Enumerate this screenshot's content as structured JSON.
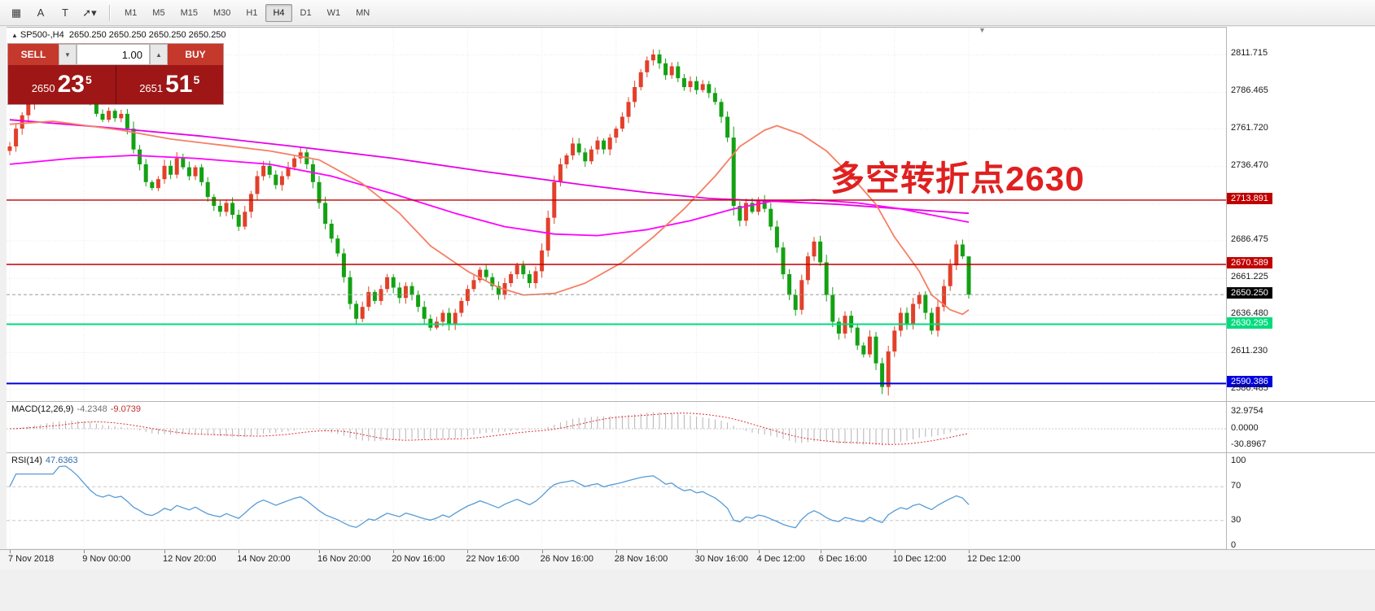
{
  "toolbar": {
    "tools": [
      {
        "id": "cursor-grid",
        "glyph": "▦"
      },
      {
        "id": "text-label-a",
        "glyph": "A"
      },
      {
        "id": "text-box-t",
        "glyph": "T"
      },
      {
        "id": "draw-objects-dropdown",
        "glyph": "➚▾"
      }
    ],
    "timeframes": [
      "M1",
      "M5",
      "M15",
      "M30",
      "H1",
      "H4",
      "D1",
      "W1",
      "MN"
    ],
    "active_timeframe": "H4"
  },
  "chart": {
    "symbol_header": {
      "name": "SP500-,H4",
      "ohlc": "2650.250 2650.250 2650.250 2650.250"
    },
    "icons": {
      "symbol_marker": "▲",
      "scroll_marker": "▼",
      "spinner_down": "▼",
      "spinner_up": "▲"
    },
    "trade_panel": {
      "sell": "SELL",
      "buy": "BUY",
      "volume": "1.00",
      "sell_price": {
        "base": "2650",
        "big": "23",
        "sup": "5"
      },
      "buy_price": {
        "base": "2651",
        "big": "51",
        "sup": "5"
      },
      "colors": {
        "button": "#c5382c",
        "panel": "#9e1616"
      }
    },
    "annotation": {
      "text": "多空转折点2630",
      "color": "#e02020"
    }
  },
  "macd": {
    "title": "MACD(12,26,9)",
    "value": "-4.2348",
    "signal_value": "-9.0739",
    "axis_labels": [
      "32.9754",
      "0.0000",
      "-30.8967"
    ]
  },
  "rsi": {
    "title": "RSI(14)",
    "value": "47.6363",
    "axis_labels": [
      "100",
      "70",
      "30",
      "0"
    ]
  },
  "chart_data": {
    "type": "candlestick",
    "symbol": "SP500-",
    "timeframe": "H4",
    "ylim": [
      2578,
      2830
    ],
    "grid_prices": [
      2811.715,
      2786.465,
      2761.72,
      2736.47,
      2711.22,
      2686.475,
      2661.225,
      2636.48,
      2611.23,
      2586.485
    ],
    "axis_labels": [
      {
        "text": "2811.715",
        "type": "grid"
      },
      {
        "text": "2786.465",
        "type": "grid"
      },
      {
        "text": "2761.720",
        "type": "grid"
      },
      {
        "text": "2736.470",
        "type": "grid"
      },
      {
        "text": "2713.891",
        "type": "line",
        "color": "#c00000"
      },
      {
        "text": "2686.475",
        "type": "grid"
      },
      {
        "text": "2670.589",
        "type": "line",
        "color": "#c00000"
      },
      {
        "text": "2661.225",
        "type": "grid"
      },
      {
        "text": "2650.250",
        "type": "price",
        "color": "#000000"
      },
      {
        "text": "2636.480",
        "type": "grid"
      },
      {
        "text": "2630.295",
        "type": "line",
        "color": "#00dc7d"
      },
      {
        "text": "2611.230",
        "type": "grid"
      },
      {
        "text": "2590.386",
        "type": "line",
        "color": "#0000e0"
      },
      {
        "text": "2586.485",
        "type": "grid"
      }
    ],
    "hlines": [
      {
        "price": 2713.891,
        "color": "#c00000",
        "width": 1.4
      },
      {
        "price": 2670.589,
        "color": "#c00000",
        "width": 1.4
      },
      {
        "price": 2630.295,
        "color": "#00dc7d",
        "width": 2
      },
      {
        "price": 2590.386,
        "color": "#0000e0",
        "width": 2
      }
    ],
    "current_price": 2650.25,
    "colors": {
      "up": "#e2402a",
      "down": "#13a113",
      "grid": "#e8e8e8"
    },
    "candles": {
      "first_open": 2747,
      "closes": [
        2750,
        2762,
        2771,
        2779,
        2788,
        2796,
        2804,
        2810,
        2806,
        2812,
        2808,
        2802,
        2793,
        2782,
        2772,
        2768,
        2774,
        2769,
        2772,
        2762,
        2748,
        2738,
        2726,
        2722,
        2728,
        2737,
        2731,
        2742,
        2736,
        2730,
        2736,
        2726,
        2716,
        2710,
        2706,
        2712,
        2704,
        2696,
        2706,
        2718,
        2730,
        2737,
        2731,
        2724,
        2730,
        2736,
        2742,
        2746,
        2738,
        2726,
        2712,
        2698,
        2688,
        2678,
        2662,
        2644,
        2634,
        2642,
        2652,
        2646,
        2654,
        2662,
        2655,
        2648,
        2656,
        2650,
        2642,
        2634,
        2628,
        2632,
        2638,
        2630,
        2638,
        2646,
        2654,
        2660,
        2667,
        2662,
        2656,
        2650,
        2658,
        2664,
        2670,
        2664,
        2658,
        2666,
        2680,
        2702,
        2726,
        2738,
        2744,
        2752,
        2746,
        2740,
        2748,
        2754,
        2748,
        2756,
        2762,
        2770,
        2780,
        2790,
        2800,
        2808,
        2812,
        2806,
        2798,
        2804,
        2796,
        2790,
        2794,
        2788,
        2792,
        2786,
        2780,
        2770,
        2756,
        2710,
        2700,
        2712,
        2706,
        2714,
        2708,
        2696,
        2682,
        2664,
        2650,
        2640,
        2660,
        2676,
        2686,
        2672,
        2650,
        2632,
        2624,
        2636,
        2628,
        2616,
        2610,
        2622,
        2604,
        2588,
        2612,
        2626,
        2638,
        2630,
        2644,
        2650,
        2638,
        2626,
        2642,
        2656,
        2670,
        2684,
        2676,
        2650.25
      ],
      "wick_overrides": {
        "104": {
          "high": 2815.4
        },
        "117": {
          "low": 2703.5
        },
        "141": {
          "low": 2583.3
        },
        "155": {
          "high": 2652.8,
          "low": 2647.6
        }
      }
    },
    "ma_fast": {
      "name": "ma-fast-coral",
      "color": "#f58064",
      "anchors": [
        [
          0,
          2765
        ],
        [
          7,
          2767
        ],
        [
          18,
          2761
        ],
        [
          26,
          2755
        ],
        [
          34,
          2751
        ],
        [
          42,
          2747
        ],
        [
          50,
          2741
        ],
        [
          57,
          2725
        ],
        [
          63,
          2705
        ],
        [
          68,
          2683
        ],
        [
          74,
          2666
        ],
        [
          79,
          2655
        ],
        [
          83,
          2650
        ],
        [
          88,
          2651
        ],
        [
          93,
          2658
        ],
        [
          99,
          2672
        ],
        [
          104,
          2689
        ],
        [
          109,
          2708
        ],
        [
          114,
          2730
        ],
        [
          118,
          2750
        ],
        [
          122,
          2761
        ],
        [
          124,
          2764
        ],
        [
          128,
          2758
        ],
        [
          132,
          2747
        ],
        [
          136,
          2730
        ],
        [
          140,
          2711
        ],
        [
          143,
          2689
        ],
        [
          147,
          2666
        ],
        [
          149,
          2650
        ],
        [
          152,
          2640
        ],
        [
          154,
          2637
        ],
        [
          155,
          2640
        ]
      ]
    },
    "ma_mid": {
      "name": "ma-mid-magenta",
      "color": "#ff00ff",
      "anchors": [
        [
          0,
          2738
        ],
        [
          10,
          2742
        ],
        [
          20,
          2744
        ],
        [
          30,
          2742
        ],
        [
          42,
          2738
        ],
        [
          52,
          2730
        ],
        [
          62,
          2718
        ],
        [
          72,
          2705
        ],
        [
          80,
          2696
        ],
        [
          88,
          2691
        ],
        [
          95,
          2690
        ],
        [
          103,
          2694
        ],
        [
          110,
          2700
        ],
        [
          117,
          2708
        ],
        [
          123,
          2713
        ],
        [
          130,
          2714
        ],
        [
          137,
          2712
        ],
        [
          144,
          2708
        ],
        [
          150,
          2703
        ],
        [
          155,
          2699
        ]
      ]
    },
    "ma_slow": {
      "name": "ma-slow-magenta",
      "color": "#e800e8",
      "anchors": [
        [
          0,
          2768
        ],
        [
          15,
          2763
        ],
        [
          31,
          2757
        ],
        [
          46,
          2750
        ],
        [
          62,
          2742
        ],
        [
          77,
          2733
        ],
        [
          93,
          2724
        ],
        [
          103,
          2719
        ],
        [
          113,
          2715
        ],
        [
          124,
          2713
        ],
        [
          134,
          2711
        ],
        [
          144,
          2708
        ],
        [
          155,
          2705
        ]
      ]
    },
    "time_ticks": {
      "indices": [
        0,
        12,
        25,
        37,
        50,
        62,
        74,
        86,
        98,
        111,
        121,
        131,
        143,
        155
      ],
      "labels": [
        "7 Nov 2018",
        "9 Nov 00:00",
        "12 Nov 20:00",
        "14 Nov 20:00",
        "16 Nov 20:00",
        "20 Nov 16:00",
        "22 Nov 16:00",
        "26 Nov 16:00",
        "28 Nov 16:00",
        "30 Nov 16:00",
        "4 Dec 12:00",
        "6 Dec 16:00",
        "10 Dec 12:00",
        "12 Dec 12:00"
      ]
    },
    "macd": {
      "params": [
        12,
        26,
        9
      ],
      "value": -4.2348,
      "signal": -9.0739,
      "ylim": [
        -30.8967,
        32.9754
      ],
      "hist_color": "#b4b4b4",
      "signal_color": "#e03030"
    },
    "rsi": {
      "period": 14,
      "value": 47.6363,
      "ylim": [
        0,
        100
      ],
      "levels": [
        30,
        70
      ],
      "color": "#569bd5"
    }
  }
}
